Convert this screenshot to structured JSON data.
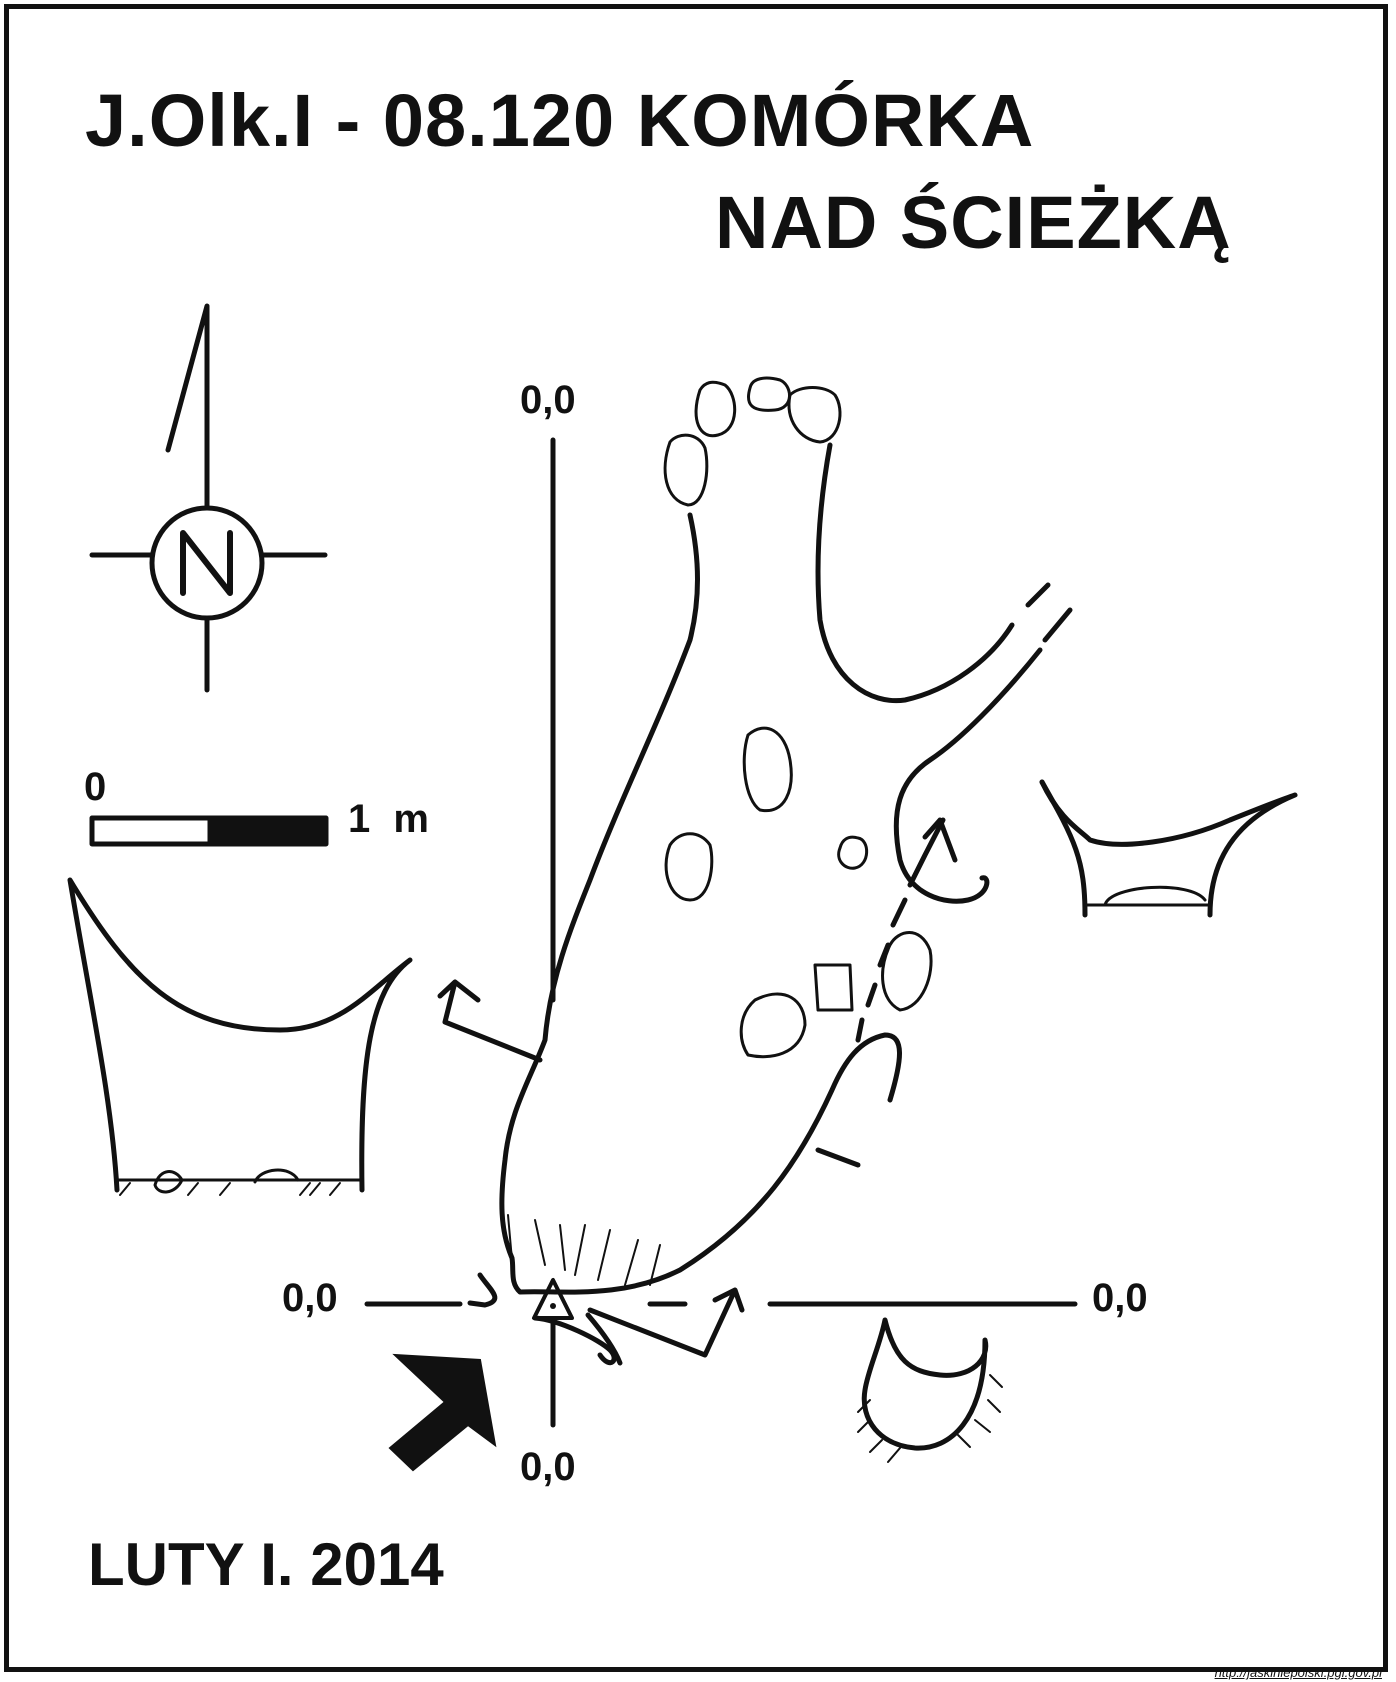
{
  "title": {
    "line1": "J.Olk.I - 08.120  KOMÓRKA",
    "line2": "NAD ŚCIEŻKĄ"
  },
  "date": "LUTY I. 2014",
  "north_arrow": {
    "label": "N",
    "icon": "north-arrow-icon"
  },
  "scale_bar": {
    "start_label": "0",
    "end_label": "1 m"
  },
  "datum_labels": {
    "vertical_top": "0,0",
    "vertical_bottom": "0,0",
    "horizontal_left": "0,0",
    "horizontal_right": "0,0"
  },
  "source": "http://jaskiniepolski.pgi.gov.pl"
}
